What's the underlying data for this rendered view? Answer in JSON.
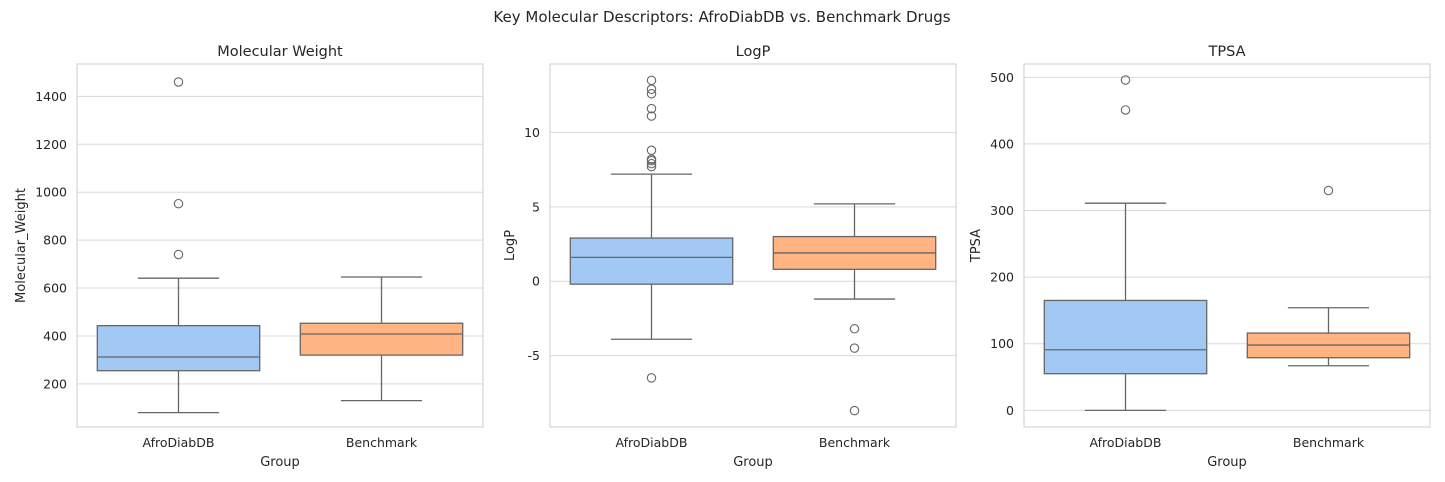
{
  "suptitle": "Key Molecular Descriptors: AfroDiabDB vs. Benchmark Drugs",
  "colors": {
    "afrodiabdb": "#a1c9f4",
    "benchmark": "#ffb482",
    "line": "#666666",
    "grid": "#d9d9d9",
    "frame": "#cccccc"
  },
  "chart_data": [
    {
      "type": "box",
      "title": "Molecular Weight",
      "xlabel": "Group",
      "ylabel": "Molecular_Weight",
      "categories": [
        "AfroDiabDB",
        "Benchmark"
      ],
      "ylim": [
        20,
        1535
      ],
      "yticks": [
        200,
        400,
        600,
        800,
        1000,
        1200,
        1400
      ],
      "grid": true,
      "boxes": [
        {
          "group": "AfroDiabDB",
          "whislo": 80,
          "q1": 255,
          "med": 312,
          "q3": 443,
          "whishi": 641,
          "fliers": [
            740,
            952,
            1460
          ]
        },
        {
          "group": "Benchmark",
          "whislo": 130,
          "q1": 320,
          "med": 408,
          "q3": 453,
          "whishi": 646,
          "fliers": []
        }
      ]
    },
    {
      "type": "box",
      "title": "LogP",
      "xlabel": "Group",
      "ylabel": "LogP",
      "categories": [
        "AfroDiabDB",
        "Benchmark"
      ],
      "ylim": [
        -9.8,
        14.6
      ],
      "yticks": [
        -5,
        0,
        5,
        10
      ],
      "grid": true,
      "boxes": [
        {
          "group": "AfroDiabDB",
          "whislo": -3.9,
          "q1": -0.2,
          "med": 1.6,
          "q3": 2.9,
          "whishi": 7.2,
          "fliers": [
            -6.5,
            7.7,
            7.9,
            8.1,
            8.2,
            8.8,
            11.1,
            11.6,
            12.6,
            12.9,
            13.5
          ]
        },
        {
          "group": "Benchmark",
          "whislo": -1.2,
          "q1": 0.8,
          "med": 1.9,
          "q3": 3.0,
          "whishi": 5.2,
          "fliers": [
            -3.2,
            -4.5,
            -8.7
          ]
        }
      ]
    },
    {
      "type": "box",
      "title": "TPSA",
      "xlabel": "Group",
      "ylabel": "TPSA",
      "categories": [
        "AfroDiabDB",
        "Benchmark"
      ],
      "ylim": [
        -25,
        520
      ],
      "yticks": [
        0,
        100,
        200,
        300,
        400,
        500
      ],
      "grid": true,
      "boxes": [
        {
          "group": "AfroDiabDB",
          "whislo": 0,
          "q1": 55,
          "med": 91,
          "q3": 165,
          "whishi": 311,
          "fliers": [
            451,
            496
          ]
        },
        {
          "group": "Benchmark",
          "whislo": 67,
          "q1": 79,
          "med": 98,
          "q3": 116,
          "whishi": 154,
          "fliers": [
            330
          ]
        }
      ]
    }
  ]
}
